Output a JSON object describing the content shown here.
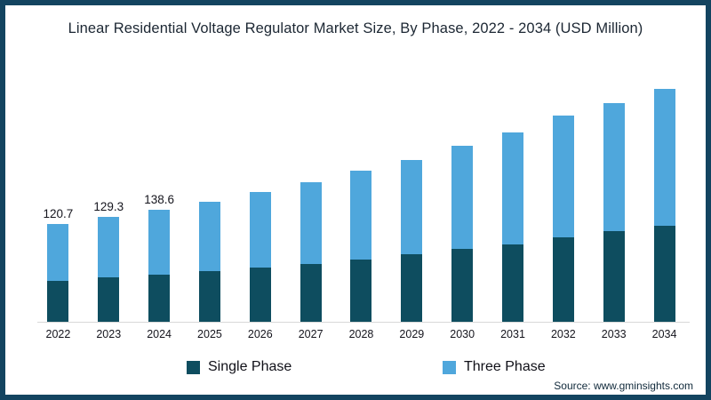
{
  "title": "Linear Residential Voltage Regulator Market Size, By Phase, 2022 - 2034 (USD Million)",
  "source": "Source: www.gminsights.com",
  "colors": {
    "frame": "#134460",
    "single_phase": "#0e4d5f",
    "three_phase": "#4fa7dc",
    "axis_line": "#d8d8d8"
  },
  "legend": {
    "items": [
      {
        "label": "Single Phase"
      },
      {
        "label": "Three Phase"
      }
    ]
  },
  "chart_data": {
    "type": "bar",
    "stacked": true,
    "title": "Linear Residential Voltage Regulator Market Size, By Phase, 2022 - 2034 (USD Million)",
    "xlabel": "",
    "ylabel": "USD Million",
    "grid": false,
    "legend_position": "bottom",
    "categories": [
      "2022",
      "2023",
      "2024",
      "2025",
      "2026",
      "2027",
      "2028",
      "2029",
      "2030",
      "2031",
      "2032",
      "2033",
      "2034"
    ],
    "series": [
      {
        "name": "Single Phase",
        "color": "#0e4d5f",
        "values": [
          51.5,
          55.4,
          58.7,
          63.5,
          67.1,
          71.8,
          76.9,
          83.4,
          90.7,
          96.1,
          104.8,
          112.0,
          118.5
        ]
      },
      {
        "name": "Three Phase",
        "color": "#4fa7dc",
        "values": [
          69.2,
          73.9,
          79.9,
          84.8,
          93.1,
          100.4,
          108.7,
          116.0,
          125.3,
          136.6,
          148.5,
          157.0,
          167.9
        ]
      }
    ],
    "totals": [
      120.7,
      129.3,
      138.6,
      148.3,
      160.2,
      172.2,
      185.6,
      199.4,
      216.0,
      232.7,
      253.3,
      269.0,
      286.4
    ],
    "data_labels": [
      "120.7",
      "129.3",
      "138.6",
      "",
      "",
      "",
      "",
      "",
      "",
      "",
      "",
      "",
      ""
    ],
    "ylim": [
      0,
      300
    ]
  }
}
